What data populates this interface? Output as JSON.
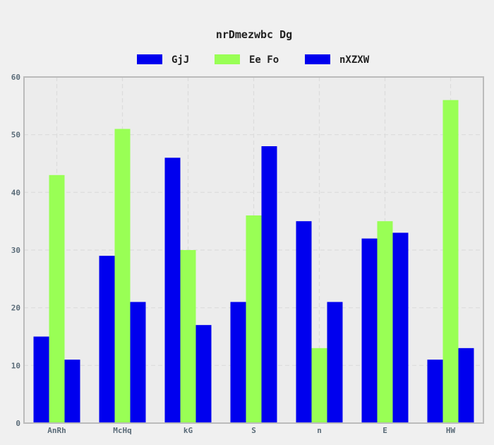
{
  "chart_data": {
    "type": "bar",
    "title": "nrDmezwbc Dg",
    "categories": [
      "AnRh",
      "McHq",
      "kG",
      "S",
      "n",
      "E",
      "HW"
    ],
    "series": [
      {
        "name": "GjJ",
        "color": "#0000ee",
        "values": [
          15,
          29,
          46,
          21,
          35,
          32,
          11
        ]
      },
      {
        "name": "Ee Fo",
        "color": "#99ff55",
        "values": [
          43,
          51,
          30,
          36,
          13,
          35,
          56
        ]
      },
      {
        "name": "nXZXW",
        "color": "#0000ee",
        "values": [
          11,
          21,
          17,
          48,
          21,
          33,
          13
        ]
      }
    ],
    "ylim": [
      0,
      60
    ],
    "yticks": [
      0,
      10,
      20,
      30,
      40,
      50,
      60
    ],
    "grid": true,
    "legend_position": "top-center",
    "colors": {
      "plot_background": "#ececec",
      "page_background": "#f0f0f0",
      "axis": "#bbbbbb",
      "grid": "#dcdcdc",
      "tick_text": "#5a6b78",
      "title_text": "#222222"
    }
  }
}
